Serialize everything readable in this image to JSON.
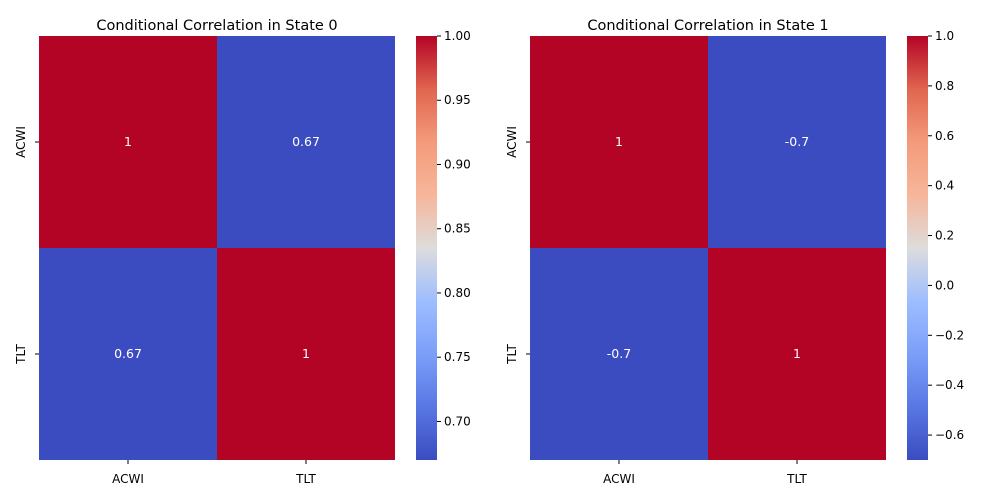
{
  "chart_data": [
    {
      "type": "heatmap",
      "title": "Conditional Correlation in State 0",
      "x_categories": [
        "ACWI",
        "TLT"
      ],
      "y_categories": [
        "ACWI",
        "TLT"
      ],
      "values": [
        [
          1.0,
          0.67
        ],
        [
          0.67,
          1.0
        ]
      ],
      "annotations": [
        [
          "1",
          "0.67"
        ],
        [
          "0.67",
          "1"
        ]
      ],
      "colormap": "coolwarm",
      "vmin": 0.67,
      "vmax": 1.0,
      "colorbar_ticks": [
        "0.70",
        "0.75",
        "0.80",
        "0.85",
        "0.90",
        "0.95",
        "1.00"
      ],
      "colorbar_tick_values": [
        0.7,
        0.75,
        0.8,
        0.85,
        0.9,
        0.95,
        1.0
      ]
    },
    {
      "type": "heatmap",
      "title": "Conditional Correlation in State 1",
      "x_categories": [
        "ACWI",
        "TLT"
      ],
      "y_categories": [
        "ACWI",
        "TLT"
      ],
      "values": [
        [
          1.0,
          -0.7
        ],
        [
          -0.7,
          1.0
        ]
      ],
      "annotations": [
        [
          "1",
          "-0.7"
        ],
        [
          "-0.7",
          "1"
        ]
      ],
      "colormap": "coolwarm",
      "vmin": -0.7,
      "vmax": 1.0,
      "colorbar_ticks": [
        "−0.6",
        "−0.4",
        "−0.2",
        "0.0",
        "0.2",
        "0.4",
        "0.6",
        "0.8",
        "1.0"
      ],
      "colorbar_tick_values": [
        -0.6,
        -0.4,
        -0.2,
        0.0,
        0.2,
        0.4,
        0.6,
        0.8,
        1.0
      ]
    }
  ]
}
